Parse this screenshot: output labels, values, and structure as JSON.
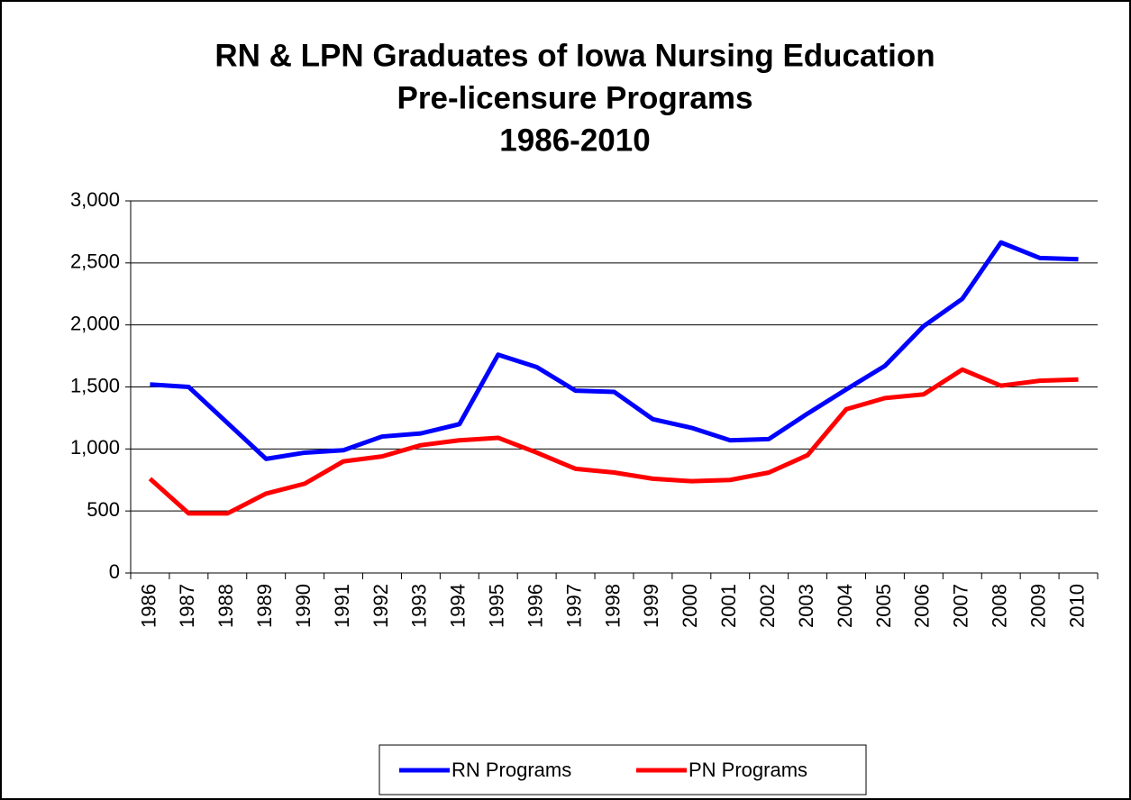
{
  "chart_data": {
    "type": "line",
    "title": [
      "RN & LPN Graduates of Iowa Nursing Education",
      "Pre-licensure Programs",
      "1986-2010"
    ],
    "categories": [
      "1986",
      "1987",
      "1988",
      "1989",
      "1990",
      "1991",
      "1992",
      "1993",
      "1994",
      "1995",
      "1996",
      "1997",
      "1998",
      "1999",
      "2000",
      "2001",
      "2002",
      "2003",
      "2004",
      "2005",
      "2006",
      "2007",
      "2008",
      "2009",
      "2010"
    ],
    "series": [
      {
        "name": "RN Programs",
        "color": "#0000ff",
        "values": [
          1520,
          1500,
          1210,
          920,
          970,
          990,
          1100,
          1125,
          1200,
          1760,
          1660,
          1470,
          1460,
          1240,
          1170,
          1070,
          1080,
          1285,
          1480,
          1670,
          1990,
          2210,
          2665,
          2540,
          2530
        ]
      },
      {
        "name": "PN Programs",
        "color": "#ff0000",
        "values": [
          760,
          480,
          480,
          640,
          720,
          900,
          940,
          1030,
          1070,
          1090,
          970,
          840,
          810,
          760,
          740,
          750,
          810,
          950,
          1320,
          1410,
          1440,
          1640,
          1510,
          1550,
          1560
        ]
      }
    ],
    "ylim": [
      0,
      3000
    ],
    "yticks": [
      0,
      500,
      {
        "value": 1000,
        "label": "1,000"
      },
      {
        "value": 1500,
        "label": "1,500"
      },
      {
        "value": 2000,
        "label": "2,000"
      },
      {
        "value": 2500,
        "label": "2,500"
      },
      {
        "value": 3000,
        "label": "3,000"
      }
    ],
    "grid": true,
    "legend": "bottom"
  }
}
